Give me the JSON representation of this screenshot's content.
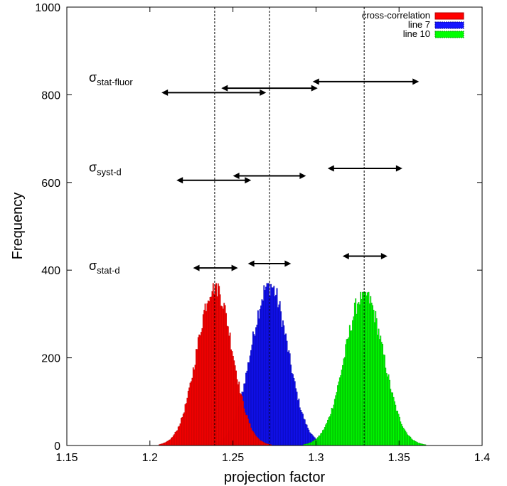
{
  "chart_data": {
    "type": "bar",
    "subtype": "histogram",
    "xlabel": "projection factor",
    "ylabel": "Frequency",
    "xlim": [
      1.15,
      1.4
    ],
    "ylim": [
      0,
      1000
    ],
    "xticks": [
      "1.15",
      "1.2",
      "1.25",
      "1.3",
      "1.35",
      "1.4"
    ],
    "yticks": [
      "0",
      "200",
      "400",
      "600",
      "800",
      "1000"
    ],
    "grid": false,
    "legend": {
      "position": "top-right",
      "entries": [
        "cross-correlation",
        "line 7",
        "line 10"
      ]
    },
    "series": [
      {
        "name": "cross-correlation",
        "color": "#ff0000",
        "edge": "#b00000",
        "center": 1.239,
        "sigma": 0.0105,
        "peak": 370,
        "draw_order": 3
      },
      {
        "name": "line 7",
        "color": "#1414ff",
        "edge": "#000099",
        "center": 1.272,
        "sigma": 0.011,
        "peak": 370,
        "draw_order": 1
      },
      {
        "name": "line 10",
        "color": "#00ff00",
        "edge": "#009900",
        "center": 1.329,
        "sigma": 0.0115,
        "peak": 350,
        "draw_order": 2
      }
    ],
    "dashed_lines_x": [
      1.239,
      1.272,
      1.329
    ],
    "error_bars": [
      {
        "label_base": "σ",
        "label_sub": "stat-fluor",
        "label_y": 830,
        "bars": [
          {
            "xmin": 1.207,
            "xmax": 1.27,
            "y": 805
          },
          {
            "xmin": 1.243,
            "xmax": 1.301,
            "y": 815
          },
          {
            "xmin": 1.298,
            "xmax": 1.362,
            "y": 830
          }
        ]
      },
      {
        "label_base": "σ",
        "label_sub": "syst-d",
        "label_y": 625,
        "bars": [
          {
            "xmin": 1.216,
            "xmax": 1.261,
            "y": 605
          },
          {
            "xmin": 1.25,
            "xmax": 1.294,
            "y": 615
          },
          {
            "xmin": 1.307,
            "xmax": 1.352,
            "y": 632
          }
        ]
      },
      {
        "label_base": "σ",
        "label_sub": "stat-d",
        "label_y": 400,
        "bars": [
          {
            "xmin": 1.226,
            "xmax": 1.253,
            "y": 405
          },
          {
            "xmin": 1.259,
            "xmax": 1.285,
            "y": 415
          },
          {
            "xmin": 1.316,
            "xmax": 1.343,
            "y": 432
          }
        ]
      }
    ]
  }
}
